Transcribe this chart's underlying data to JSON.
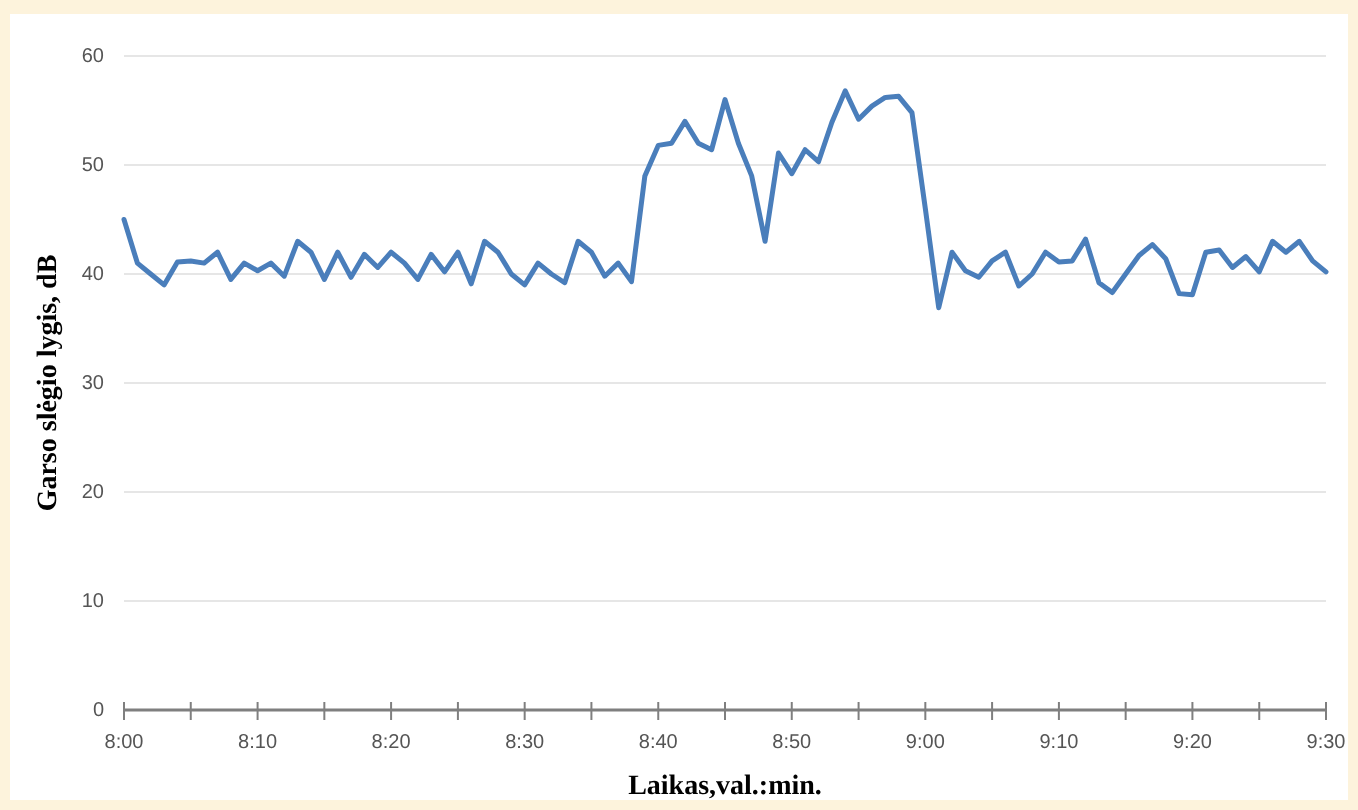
{
  "chart_data": {
    "type": "line",
    "xlabel": "Laikas,val.:min.",
    "ylabel": "Garso slėgio lygis, dB",
    "x": [
      8,
      8.0167,
      8.0333,
      8.05,
      8.0667,
      8.0833,
      8.1,
      8.1167,
      8.1333,
      8.15,
      8.1667,
      8.1833,
      8.2,
      8.2167,
      8.2333,
      8.25,
      8.2667,
      8.2833,
      8.3,
      8.3167,
      8.3333,
      8.35,
      8.3667,
      8.3833,
      8.4,
      8.4167,
      8.4333,
      8.45,
      8.4667,
      8.4833,
      8.5,
      8.5167,
      8.5333,
      8.55,
      8.5667,
      8.5833,
      8.6,
      8.6167,
      8.6333,
      8.65,
      8.6667,
      8.6833,
      8.7,
      8.7167,
      8.7333,
      8.75,
      8.7667,
      8.7833,
      8.8,
      8.8167,
      8.8333,
      8.85,
      8.8667,
      8.8833,
      8.9,
      8.9167,
      8.9333,
      8.95,
      8.9667,
      8.9833,
      9,
      9.0167,
      9.0333,
      9.05,
      9.0667,
      9.0833,
      9.1,
      9.1167,
      9.1333,
      9.15,
      9.1667,
      9.1833,
      9.2,
      9.2167,
      9.2333,
      9.25,
      9.2667,
      9.2833,
      9.3,
      9.3167,
      9.3333,
      9.35,
      9.3667,
      9.3833,
      9.4,
      9.4167,
      9.4333,
      9.45,
      9.4667,
      9.4833,
      9.5
    ],
    "series": [
      {
        "color": "#4a7ebb",
        "values": [
          45,
          41,
          40,
          39,
          41.1,
          41.2,
          41,
          42,
          39.5,
          41,
          40.3,
          41,
          39.8,
          43,
          42,
          39.5,
          42,
          39.7,
          41.8,
          40.6,
          42,
          41,
          39.5,
          41.8,
          40.2,
          42,
          39.1,
          43,
          42,
          40,
          39,
          41,
          40,
          39.2,
          43,
          42,
          39.8,
          41,
          39.3,
          49,
          51.8,
          52,
          54,
          52,
          51.4,
          56,
          52,
          49,
          43,
          51.1,
          49.2,
          51.4,
          50.3,
          53.9,
          56.8,
          54.2,
          55.4,
          56.2,
          56.3,
          54.8,
          46,
          36.9,
          42,
          40.3,
          39.7,
          41.2,
          42,
          38.9,
          40,
          42,
          41.1,
          41.2,
          43.2,
          39.2,
          38.3,
          40,
          41.7,
          42.7,
          41.4,
          38.2,
          38.1,
          42,
          42.2,
          40.6,
          41.6,
          40.2,
          43,
          42,
          43,
          41.2,
          40.2
        ]
      }
    ],
    "xlim": [
      8,
      9.5
    ],
    "xticks": [
      {
        "value": 8,
        "label": "8:00"
      },
      {
        "value": 8.0833,
        "label": null
      },
      {
        "value": 8.1667,
        "label": "8:10"
      },
      {
        "value": 8.25,
        "label": null
      },
      {
        "value": 8.3333,
        "label": "8:20"
      },
      {
        "value": 8.4167,
        "label": null
      },
      {
        "value": 8.5,
        "label": "8:30"
      },
      {
        "value": 8.5833,
        "label": null
      },
      {
        "value": 8.6667,
        "label": "8:40"
      },
      {
        "value": 8.75,
        "label": null
      },
      {
        "value": 8.8333,
        "label": "8:50"
      },
      {
        "value": 8.9167,
        "label": null
      },
      {
        "value": 9,
        "label": "9:00"
      },
      {
        "value": 9.0833,
        "label": null
      },
      {
        "value": 9.1667,
        "label": "9:10"
      },
      {
        "value": 9.25,
        "label": null
      },
      {
        "value": 9.3333,
        "label": "9:20"
      },
      {
        "value": 9.4167,
        "label": null
      },
      {
        "value": 9.5,
        "label": "9:30"
      }
    ],
    "ylim": [
      0,
      60
    ],
    "yticks": [
      0,
      10,
      20,
      30,
      40,
      50,
      60
    ],
    "grid": "y",
    "line_style": "solid",
    "marker": "none"
  }
}
